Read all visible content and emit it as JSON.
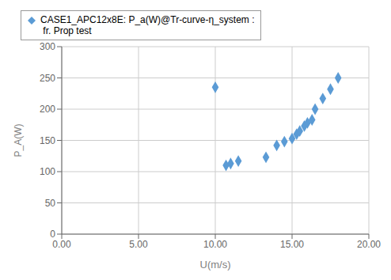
{
  "chart_data": {
    "type": "scatter",
    "xlabel": "U(m/s)",
    "ylabel": "P_A(W)",
    "x": [
      10.0,
      10.7,
      11.0,
      11.5,
      13.3,
      14.0,
      14.5,
      15.0,
      15.3,
      15.5,
      15.8,
      16.0,
      16.3,
      16.5,
      17.0,
      17.5,
      18.0
    ],
    "series": [
      {
        "name": "CASE1_APC12x8E: P_a(W)@Tr-curve-η_system :\n fr. Prop test",
        "color": "#5B9BD5",
        "marker": "diamond",
        "values": [
          235,
          110,
          113,
          117,
          123,
          142,
          148,
          153,
          160,
          165,
          173,
          178,
          183,
          200,
          217,
          232,
          250
        ]
      }
    ],
    "xlim": [
      0.0,
      20.0
    ],
    "ylim": [
      0,
      300
    ],
    "xticks": [
      {
        "value": 0.0,
        "label": "0.00"
      },
      {
        "value": 5.0,
        "label": "5.00"
      },
      {
        "value": 10.0,
        "label": "10.00"
      },
      {
        "value": 15.0,
        "label": "15.00"
      },
      {
        "value": 20.0,
        "label": "20.00"
      }
    ],
    "yticks": [
      0,
      50,
      100,
      150,
      200,
      250,
      300
    ],
    "grid": true,
    "legend": "upper left"
  }
}
